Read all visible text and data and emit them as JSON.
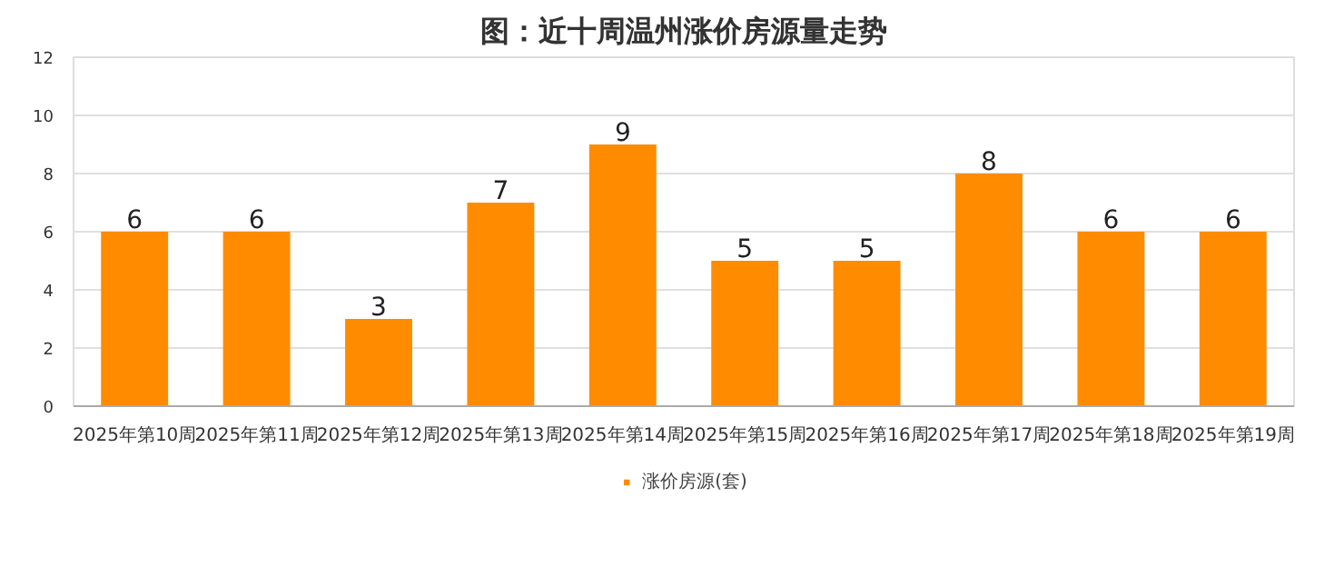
{
  "chart_data": {
    "type": "bar",
    "title": "图：近十周温州涨价房源量走势",
    "categories": [
      "2025年第10周",
      "2025年第11周",
      "2025年第12周",
      "2025年第13周",
      "2025年第14周",
      "2025年第15周",
      "2025年第16周",
      "2025年第17周",
      "2025年第18周",
      "2025年第19周"
    ],
    "series": [
      {
        "name": "涨价房源(套)",
        "color": "#ff8c00",
        "values": [
          6,
          6,
          3,
          7,
          9,
          5,
          5,
          8,
          6,
          6
        ]
      }
    ],
    "ylim": [
      0,
      12
    ],
    "yticks": [
      0,
      2,
      4,
      6,
      8,
      10,
      12
    ],
    "grid": "y",
    "legend": "bottom",
    "data_labels": true
  }
}
